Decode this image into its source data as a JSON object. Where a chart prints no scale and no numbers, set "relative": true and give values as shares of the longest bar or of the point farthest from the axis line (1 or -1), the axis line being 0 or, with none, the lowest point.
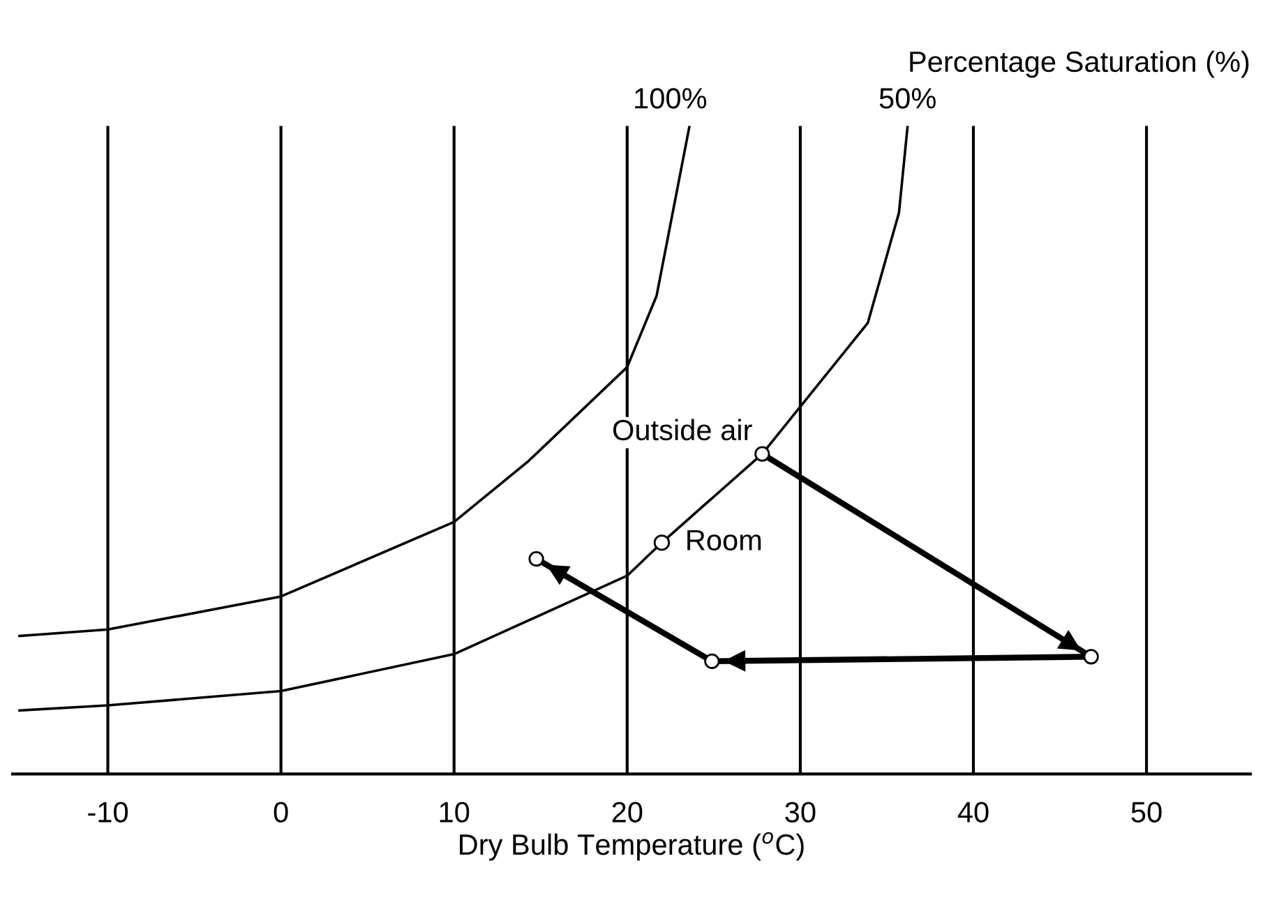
{
  "chart_data": {
    "type": "line",
    "relative": true,
    "title": "Percentage Saturation (%)",
    "xlabel": "Dry Bulb Temperature ($^{o}$C)",
    "xlim": [
      -15.5,
      56
    ],
    "xticks": [
      -10,
      0,
      10,
      20,
      30,
      40,
      50
    ],
    "grid": "x",
    "legend": false,
    "series": [
      {
        "name": "100%",
        "color": "#000000",
        "x": [
          -15.1,
          -10,
          0,
          10,
          14.3,
          20,
          21.7,
          23.6
        ],
        "values": [
          0.213,
          0.223,
          0.274,
          0.389,
          0.483,
          0.628,
          0.738,
          1.0
        ],
        "marker": "none"
      },
      {
        "name": "50%",
        "color": "#000000",
        "x": [
          -15.1,
          -10,
          0,
          10,
          20,
          22.0,
          27.8,
          33.9,
          35.7,
          36.2
        ],
        "values": [
          0.098,
          0.106,
          0.128,
          0.185,
          0.306,
          0.357,
          0.494,
          0.696,
          0.866,
          1.0
        ],
        "marker": "none"
      },
      {
        "type": "line",
        "color": "#000000",
        "x": [
          27.8,
          46.8,
          24.9,
          14.75
        ],
        "values": [
          0.494,
          0.181,
          0.174,
          0.332
        ],
        "marker": "circle"
      },
      {
        "type": "scatter",
        "color": "#000000",
        "x": [
          22.0
        ],
        "values": [
          0.357
        ],
        "marker": "circle"
      }
    ],
    "annotations": [
      {
        "text": "Outside air",
        "x": 27.8,
        "y": 0.494
      },
      {
        "text": "Room",
        "x": 22.0,
        "y": 0.357
      }
    ]
  }
}
